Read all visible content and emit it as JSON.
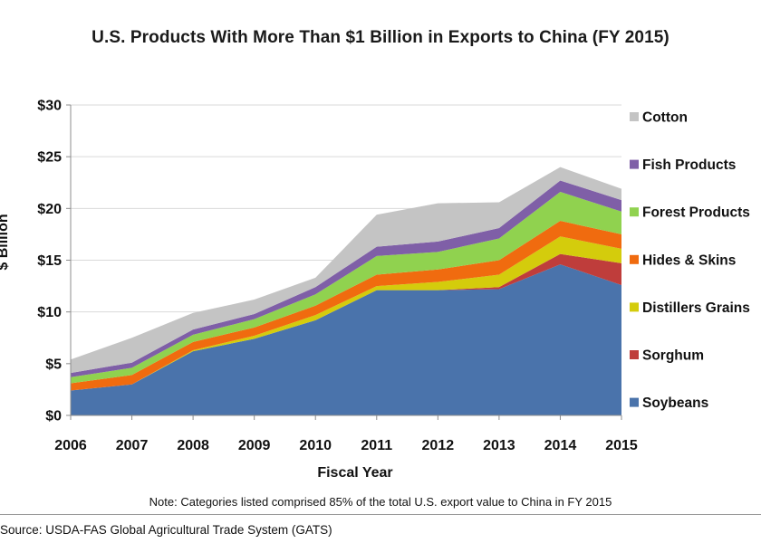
{
  "chart_data": {
    "type": "area",
    "stacked": true,
    "title": "U.S. Products With More Than $1 Billion in Exports to China (FY 2015)",
    "xlabel": "Fiscal  Year",
    "ylabel": "$ Billion",
    "ylim": [
      0,
      30
    ],
    "yticks": [
      0,
      5,
      10,
      15,
      20,
      25,
      30
    ],
    "ytick_labels": [
      "$0",
      "$5",
      "$10",
      "$15",
      "$20",
      "$25",
      "$30"
    ],
    "categories": [
      "2006",
      "2007",
      "2008",
      "2009",
      "2010",
      "2011",
      "2012",
      "2013",
      "2014",
      "2015"
    ],
    "legend_position": "right",
    "series": [
      {
        "name": "Soybeans",
        "color": "#4a73ab",
        "values": [
          2.4,
          3.0,
          6.2,
          7.4,
          9.2,
          12.1,
          12.1,
          12.2,
          14.6,
          12.6
        ]
      },
      {
        "name": "Sorghum",
        "color": "#bf3d3b",
        "values": [
          0.0,
          0.0,
          0.0,
          0.0,
          0.0,
          0.0,
          0.0,
          0.2,
          1.0,
          2.1
        ]
      },
      {
        "name": "Distillers Grains",
        "color": "#d4cc0c",
        "values": [
          0.0,
          0.0,
          0.1,
          0.3,
          0.5,
          0.4,
          0.8,
          1.2,
          1.7,
          1.4
        ]
      },
      {
        "name": "Hides & Skins",
        "color": "#f06b0f",
        "values": [
          0.7,
          0.9,
          0.8,
          0.8,
          0.9,
          1.1,
          1.2,
          1.4,
          1.5,
          1.4
        ]
      },
      {
        "name": "Forest Products",
        "color": "#90d24f",
        "values": [
          0.6,
          0.7,
          0.7,
          0.8,
          1.1,
          1.8,
          1.7,
          2.1,
          2.8,
          2.2
        ]
      },
      {
        "name": "Fish Products",
        "color": "#7f5fa7",
        "values": [
          0.4,
          0.5,
          0.5,
          0.5,
          0.7,
          0.9,
          1.0,
          1.0,
          1.1,
          1.1
        ]
      },
      {
        "name": "Cotton",
        "color": "#c4c4c4",
        "values": [
          1.3,
          2.4,
          1.6,
          1.4,
          0.9,
          3.1,
          3.7,
          2.5,
          1.3,
          1.1
        ]
      }
    ],
    "legend_order": [
      "Cotton",
      "Fish Products",
      "Forest Products",
      "Hides & Skins",
      "Distillers Grains",
      "Sorghum",
      "Soybeans"
    ]
  },
  "note": "Note: Categories listed comprised 85% of the total U.S. export value to China in FY 2015",
  "source": "Source: USDA-FAS Global Agricultural Trade System (GATS)"
}
